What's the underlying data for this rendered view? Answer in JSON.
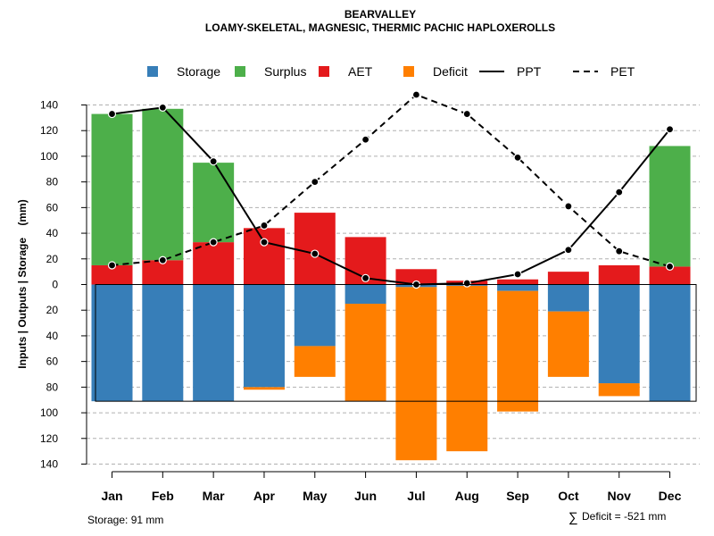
{
  "chart_data": {
    "type": "bar",
    "title": "BEARVALLEY",
    "subtitle": "LOAMY-SKELETAL, MAGNESIC, THERMIC PACHIC HAPLOXEROLLS",
    "ylabel": "Inputs | Outputs | Storage    (mm)",
    "categories": [
      "Jan",
      "Feb",
      "Mar",
      "Apr",
      "May",
      "Jun",
      "Jul",
      "Aug",
      "Sep",
      "Oct",
      "Nov",
      "Dec"
    ],
    "ylim": [
      -140,
      140
    ],
    "yticks": [
      140,
      120,
      100,
      80,
      60,
      40,
      20,
      0,
      -20,
      -40,
      -60,
      -80,
      -100,
      -120,
      -140
    ],
    "ytick_labels": [
      "140",
      "120",
      "100",
      "80",
      "60",
      "40",
      "20",
      "0",
      "20",
      "40",
      "60",
      "80",
      "100",
      "120",
      "140"
    ],
    "grid": true,
    "legend_position": "top",
    "legend": [
      {
        "label": "Storage",
        "kind": "box",
        "color": "#377EB8"
      },
      {
        "label": "Surplus",
        "kind": "box",
        "color": "#4DAF4A"
      },
      {
        "label": "AET",
        "kind": "box",
        "color": "#E41A1C"
      },
      {
        "label": "Deficit",
        "kind": "box",
        "color": "#FF7F00"
      },
      {
        "label": "PPT",
        "kind": "solid-line",
        "color": "#000000"
      },
      {
        "label": "PET",
        "kind": "dashed-line",
        "color": "#000000"
      }
    ],
    "series": [
      {
        "name": "AET",
        "color": "#E41A1C",
        "values": [
          15,
          19,
          33,
          44,
          56,
          37,
          12,
          3,
          4,
          10,
          15,
          14
        ]
      },
      {
        "name": "Surplus",
        "color": "#4DAF4A",
        "values": [
          118,
          118,
          62,
          0,
          0,
          0,
          0,
          0,
          0,
          0,
          0,
          94
        ]
      },
      {
        "name": "Storage",
        "color": "#377EB8",
        "values": [
          91,
          91,
          91,
          80,
          48,
          15,
          2,
          1,
          5,
          21,
          77,
          91
        ]
      },
      {
        "name": "Deficit",
        "color": "#FF7F00",
        "values": [
          0,
          0,
          0,
          2,
          24,
          76,
          135,
          129,
          94,
          51,
          10,
          0
        ]
      },
      {
        "name": "PPT",
        "color": "#000000",
        "style": "solid",
        "values": [
          133,
          138,
          96,
          33,
          24,
          5,
          0,
          1,
          8,
          27,
          72,
          121
        ]
      },
      {
        "name": "PET",
        "color": "#000000",
        "style": "dashed",
        "values": [
          15,
          19,
          33,
          46,
          80,
          113,
          148,
          133,
          99,
          61,
          26,
          14
        ]
      }
    ],
    "storage_capacity": 91
  },
  "annotations": {
    "storage": "Storage: 91 mm",
    "deficit_symbol": "∑",
    "deficit": "Deficit = -521 mm"
  }
}
